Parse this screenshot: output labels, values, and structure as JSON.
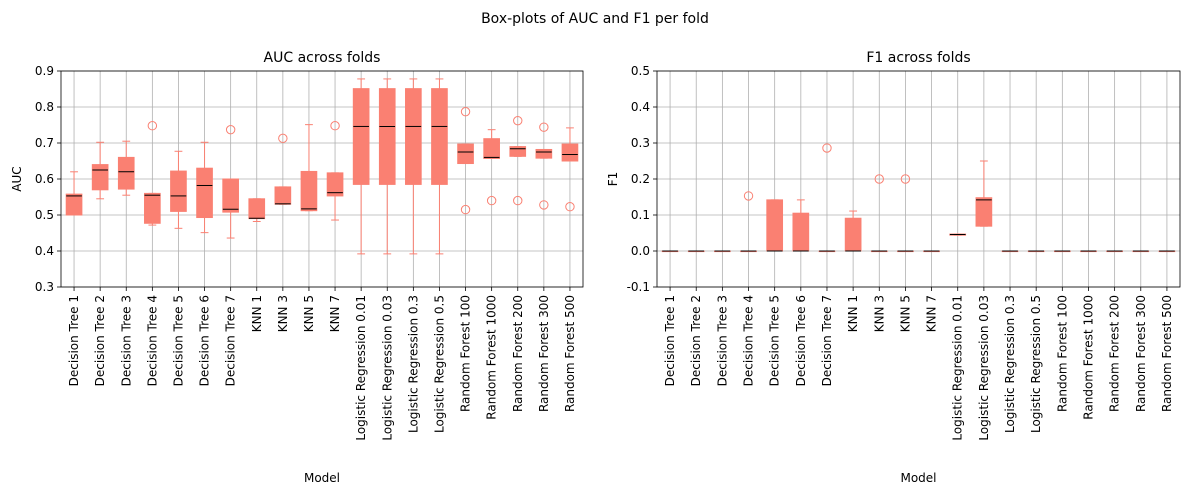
{
  "title": "Box-plots of AUC and F1 per fold",
  "chart_data": [
    {
      "type": "box",
      "title": "AUC across folds",
      "xlabel": "Model",
      "ylabel": "AUC",
      "ylim": [
        0.3,
        0.9
      ],
      "yticks": [
        0.3,
        0.4,
        0.5,
        0.6,
        0.7,
        0.8,
        0.9
      ],
      "grid": true,
      "color": "#fa8072",
      "categories": [
        "Decision Tree 1",
        "Decision Tree 2",
        "Decision Tree 3",
        "Decision Tree 4",
        "Decision Tree 5",
        "Decision Tree 6",
        "Decision Tree 7",
        "KNN 1",
        "KNN 3",
        "KNN 5",
        "KNN 7",
        "Logistic Regression 0.01",
        "Logistic Regression 0.03",
        "Logistic Regression 0.3",
        "Logistic Regression 0.5",
        "Random Forest 100",
        "Random Forest 1000",
        "Random Forest 200",
        "Random Forest 300",
        "Random Forest 500"
      ],
      "boxes": [
        {
          "whislo": 0.5,
          "q1": 0.5,
          "med": 0.553,
          "q3": 0.558,
          "whishi": 0.62,
          "fliers": []
        },
        {
          "whislo": 0.545,
          "q1": 0.57,
          "med": 0.625,
          "q3": 0.64,
          "whishi": 0.702,
          "fliers": []
        },
        {
          "whislo": 0.555,
          "q1": 0.572,
          "med": 0.62,
          "q3": 0.66,
          "whishi": 0.705,
          "fliers": []
        },
        {
          "whislo": 0.472,
          "q1": 0.477,
          "med": 0.555,
          "q3": 0.56,
          "whishi": 0.56,
          "fliers": [
            0.748
          ]
        },
        {
          "whislo": 0.463,
          "q1": 0.51,
          "med": 0.553,
          "q3": 0.622,
          "whishi": 0.677,
          "fliers": []
        },
        {
          "whislo": 0.451,
          "q1": 0.493,
          "med": 0.582,
          "q3": 0.63,
          "whishi": 0.702,
          "fliers": []
        },
        {
          "whislo": 0.436,
          "q1": 0.508,
          "med": 0.516,
          "q3": 0.6,
          "whishi": 0.6,
          "fliers": [
            0.737
          ]
        },
        {
          "whislo": 0.482,
          "q1": 0.49,
          "med": 0.491,
          "q3": 0.545,
          "whishi": 0.545,
          "fliers": []
        },
        {
          "whislo": 0.53,
          "q1": 0.53,
          "med": 0.531,
          "q3": 0.578,
          "whishi": 0.578,
          "fliers": [
            0.713
          ]
        },
        {
          "whislo": 0.512,
          "q1": 0.512,
          "med": 0.517,
          "q3": 0.621,
          "whishi": 0.751,
          "fliers": []
        },
        {
          "whislo": 0.486,
          "q1": 0.553,
          "med": 0.562,
          "q3": 0.617,
          "whishi": 0.617,
          "fliers": [
            0.748
          ]
        },
        {
          "whislo": 0.392,
          "q1": 0.585,
          "med": 0.746,
          "q3": 0.851,
          "whishi": 0.878,
          "fliers": []
        },
        {
          "whislo": 0.392,
          "q1": 0.585,
          "med": 0.746,
          "q3": 0.851,
          "whishi": 0.878,
          "fliers": []
        },
        {
          "whislo": 0.392,
          "q1": 0.585,
          "med": 0.746,
          "q3": 0.851,
          "whishi": 0.878,
          "fliers": []
        },
        {
          "whislo": 0.392,
          "q1": 0.585,
          "med": 0.746,
          "q3": 0.851,
          "whishi": 0.878,
          "fliers": []
        },
        {
          "whislo": 0.643,
          "q1": 0.643,
          "med": 0.675,
          "q3": 0.697,
          "whishi": 0.697,
          "fliers": [
            0.787,
            0.515
          ]
        },
        {
          "whislo": 0.657,
          "q1": 0.657,
          "med": 0.66,
          "q3": 0.712,
          "whishi": 0.737,
          "fliers": [
            0.54
          ]
        },
        {
          "whislo": 0.663,
          "q1": 0.663,
          "med": 0.684,
          "q3": 0.69,
          "whishi": 0.69,
          "fliers": [
            0.762,
            0.54
          ]
        },
        {
          "whislo": 0.658,
          "q1": 0.658,
          "med": 0.675,
          "q3": 0.682,
          "whishi": 0.682,
          "fliers": [
            0.744,
            0.528
          ]
        },
        {
          "whislo": 0.65,
          "q1": 0.65,
          "med": 0.668,
          "q3": 0.697,
          "whishi": 0.742,
          "fliers": [
            0.523
          ]
        }
      ]
    },
    {
      "type": "box",
      "title": "F1 across folds",
      "xlabel": "Model",
      "ylabel": "F1",
      "ylim": [
        -0.1,
        0.5
      ],
      "yticks": [
        -0.1,
        0.0,
        0.1,
        0.2,
        0.3,
        0.4,
        0.5
      ],
      "grid": true,
      "color": "#fa8072",
      "categories": [
        "Decision Tree 1",
        "Decision Tree 2",
        "Decision Tree 3",
        "Decision Tree 4",
        "Decision Tree 5",
        "Decision Tree 6",
        "Decision Tree 7",
        "KNN 1",
        "KNN 3",
        "KNN 5",
        "KNN 7",
        "Logistic Regression 0.01",
        "Logistic Regression 0.03",
        "Logistic Regression 0.3",
        "Logistic Regression 0.5",
        "Random Forest 100",
        "Random Forest 1000",
        "Random Forest 200",
        "Random Forest 300",
        "Random Forest 500"
      ],
      "boxes": [
        {
          "whislo": 0,
          "q1": 0,
          "med": 0,
          "q3": 0,
          "whishi": 0,
          "fliers": []
        },
        {
          "whislo": 0,
          "q1": 0,
          "med": 0,
          "q3": 0,
          "whishi": 0,
          "fliers": []
        },
        {
          "whislo": 0,
          "q1": 0,
          "med": 0,
          "q3": 0,
          "whishi": 0,
          "fliers": []
        },
        {
          "whislo": 0,
          "q1": 0,
          "med": 0,
          "q3": 0,
          "whishi": 0,
          "fliers": [
            0.153
          ]
        },
        {
          "whislo": 0,
          "q1": 0,
          "med": 0,
          "q3": 0.142,
          "whishi": 0.142,
          "fliers": []
        },
        {
          "whislo": 0,
          "q1": 0,
          "med": 0,
          "q3": 0.105,
          "whishi": 0.142,
          "fliers": []
        },
        {
          "whislo": 0,
          "q1": 0,
          "med": 0,
          "q3": 0,
          "whishi": 0,
          "fliers": [
            0.286
          ]
        },
        {
          "whislo": 0,
          "q1": 0,
          "med": 0,
          "q3": 0.091,
          "whishi": 0.111,
          "fliers": []
        },
        {
          "whislo": 0,
          "q1": 0,
          "med": 0,
          "q3": 0,
          "whishi": 0,
          "fliers": [
            0.2
          ]
        },
        {
          "whislo": 0,
          "q1": 0,
          "med": 0,
          "q3": 0,
          "whishi": 0,
          "fliers": [
            0.2
          ]
        },
        {
          "whislo": 0,
          "q1": 0,
          "med": 0,
          "q3": 0,
          "whishi": 0,
          "fliers": []
        },
        {
          "whislo": 0.044,
          "q1": 0.044,
          "med": 0.046,
          "q3": 0.047,
          "whishi": 0.047,
          "fliers": []
        },
        {
          "whislo": 0.069,
          "q1": 0.069,
          "med": 0.142,
          "q3": 0.148,
          "whishi": 0.25,
          "fliers": []
        },
        {
          "whislo": 0,
          "q1": 0,
          "med": 0,
          "q3": 0,
          "whishi": 0,
          "fliers": []
        },
        {
          "whislo": 0,
          "q1": 0,
          "med": 0,
          "q3": 0,
          "whishi": 0,
          "fliers": []
        },
        {
          "whislo": 0,
          "q1": 0,
          "med": 0,
          "q3": 0,
          "whishi": 0,
          "fliers": []
        },
        {
          "whislo": 0,
          "q1": 0,
          "med": 0,
          "q3": 0,
          "whishi": 0,
          "fliers": []
        },
        {
          "whislo": 0,
          "q1": 0,
          "med": 0,
          "q3": 0,
          "whishi": 0,
          "fliers": []
        },
        {
          "whislo": 0,
          "q1": 0,
          "med": 0,
          "q3": 0,
          "whishi": 0,
          "fliers": []
        },
        {
          "whislo": 0,
          "q1": 0,
          "med": 0,
          "q3": 0,
          "whishi": 0,
          "fliers": []
        }
      ]
    }
  ]
}
